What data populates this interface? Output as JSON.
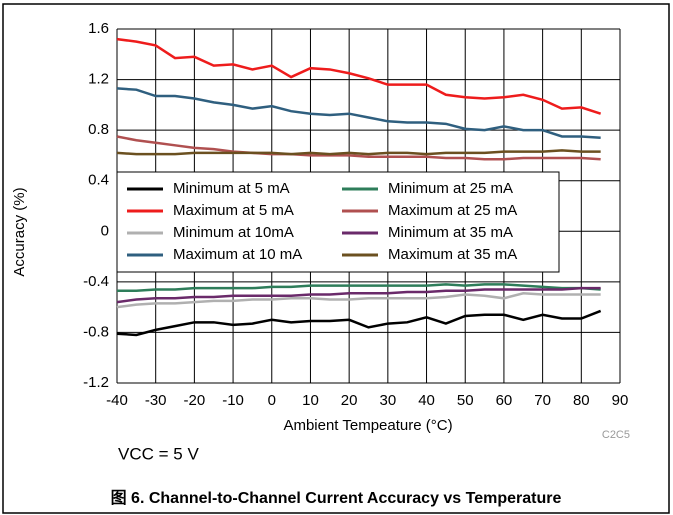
{
  "chart_data": {
    "type": "line",
    "caption": "图 6. Channel-to-Channel Current Accuracy vs Temperature",
    "annotations": [
      "VCC = 5 V",
      "C2C5"
    ],
    "x_label": "Ambient Tempeature (°C)",
    "y_label": "Accuracy (%)",
    "x": [
      -40,
      -35,
      -30,
      -25,
      -20,
      -15,
      -10,
      -5,
      0,
      5,
      10,
      15,
      20,
      25,
      30,
      35,
      40,
      45,
      50,
      55,
      60,
      65,
      70,
      75,
      80,
      85
    ],
    "xlim": [
      -40,
      90
    ],
    "xticks": [
      -40,
      -30,
      -20,
      -10,
      0,
      10,
      20,
      30,
      40,
      50,
      60,
      70,
      80,
      90
    ],
    "ylim": [
      -1.2,
      1.6
    ],
    "yticks": [
      -1.2,
      -0.8,
      -0.4,
      0,
      0.4,
      0.8,
      1.2,
      1.6
    ],
    "grid": true,
    "series": [
      {
        "name": "Minimum at 5 mA",
        "color": "#000000",
        "values": [
          -0.81,
          -0.82,
          -0.78,
          -0.75,
          -0.72,
          -0.72,
          -0.74,
          -0.73,
          -0.7,
          -0.72,
          -0.71,
          -0.71,
          -0.7,
          -0.76,
          -0.73,
          -0.72,
          -0.68,
          -0.73,
          -0.67,
          -0.66,
          -0.66,
          -0.7,
          -0.66,
          -0.69,
          -0.69,
          -0.63
        ]
      },
      {
        "name": "Maximum at 5 mA",
        "color": "#ee1c1c",
        "values": [
          1.52,
          1.5,
          1.47,
          1.37,
          1.38,
          1.31,
          1.32,
          1.28,
          1.31,
          1.22,
          1.29,
          1.28,
          1.25,
          1.21,
          1.16,
          1.16,
          1.16,
          1.08,
          1.06,
          1.05,
          1.06,
          1.08,
          1.04,
          0.97,
          0.98,
          0.93
        ]
      },
      {
        "name": "Minimum at 10mA",
        "color": "#b0b0b0",
        "values": [
          -0.6,
          -0.58,
          -0.57,
          -0.57,
          -0.56,
          -0.55,
          -0.55,
          -0.54,
          -0.54,
          -0.53,
          -0.53,
          -0.54,
          -0.54,
          -0.53,
          -0.53,
          -0.53,
          -0.53,
          -0.52,
          -0.5,
          -0.51,
          -0.53,
          -0.49,
          -0.5,
          -0.5,
          -0.5,
          -0.5
        ]
      },
      {
        "name": "Maximum at 10 mA",
        "color": "#2f5f7f",
        "values": [
          1.13,
          1.12,
          1.07,
          1.07,
          1.05,
          1.02,
          1.0,
          0.97,
          0.99,
          0.95,
          0.93,
          0.92,
          0.93,
          0.9,
          0.87,
          0.86,
          0.86,
          0.85,
          0.81,
          0.8,
          0.83,
          0.8,
          0.8,
          0.75,
          0.75,
          0.74
        ]
      },
      {
        "name": "Minimum at 25 mA",
        "color": "#2e7d5a",
        "values": [
          -0.47,
          -0.47,
          -0.46,
          -0.46,
          -0.45,
          -0.45,
          -0.45,
          -0.45,
          -0.44,
          -0.44,
          -0.43,
          -0.43,
          -0.43,
          -0.43,
          -0.43,
          -0.43,
          -0.43,
          -0.42,
          -0.43,
          -0.42,
          -0.42,
          -0.43,
          -0.44,
          -0.45,
          -0.45,
          -0.46
        ]
      },
      {
        "name": "Maximum at 25 mA",
        "color": "#b05050",
        "values": [
          0.75,
          0.72,
          0.7,
          0.68,
          0.66,
          0.65,
          0.63,
          0.62,
          0.61,
          0.61,
          0.6,
          0.6,
          0.6,
          0.59,
          0.59,
          0.59,
          0.59,
          0.58,
          0.58,
          0.57,
          0.57,
          0.58,
          0.58,
          0.58,
          0.58,
          0.57
        ]
      },
      {
        "name": "Minimum at 35 mA",
        "color": "#6a2a6a",
        "values": [
          -0.56,
          -0.54,
          -0.53,
          -0.53,
          -0.52,
          -0.52,
          -0.51,
          -0.51,
          -0.51,
          -0.51,
          -0.5,
          -0.5,
          -0.49,
          -0.49,
          -0.49,
          -0.48,
          -0.48,
          -0.47,
          -0.47,
          -0.46,
          -0.46,
          -0.46,
          -0.46,
          -0.46,
          -0.45,
          -0.45
        ]
      },
      {
        "name": "Maximum at 35 mA",
        "color": "#6b5020",
        "values": [
          0.62,
          0.61,
          0.61,
          0.61,
          0.62,
          0.62,
          0.62,
          0.62,
          0.62,
          0.61,
          0.62,
          0.61,
          0.62,
          0.61,
          0.62,
          0.62,
          0.61,
          0.62,
          0.62,
          0.62,
          0.63,
          0.63,
          0.63,
          0.64,
          0.63,
          0.63
        ]
      }
    ]
  }
}
